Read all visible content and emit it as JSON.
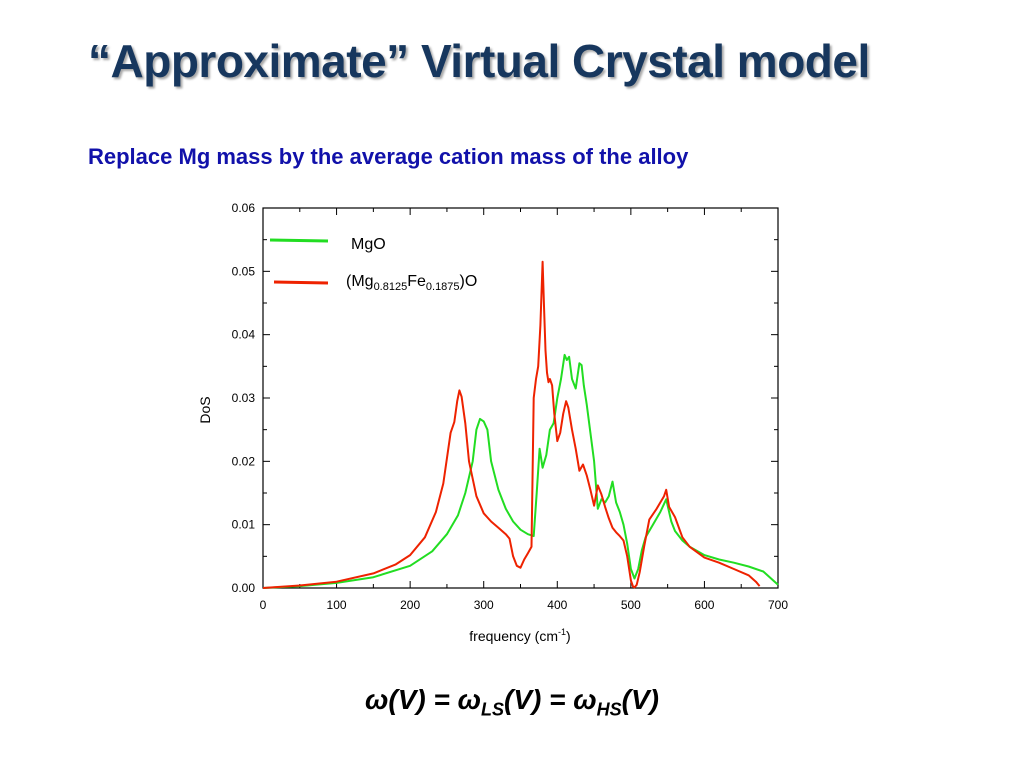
{
  "slide": {
    "title": "“Approximate” Virtual Crystal model",
    "subtitle": "Replace Mg mass by the average cation mass of the alloy"
  },
  "formula": {
    "part1": "ω(V) = ω",
    "sub1": "LS",
    "part2": "(V) = ω",
    "sub2": "HS",
    "part3": "(V)"
  },
  "chart_data": {
    "type": "line",
    "xlabel": "frequency (cm",
    "xlabel_sup": "-1",
    "xlabel_end": ")",
    "ylabel": "DoS",
    "xlim": [
      0,
      700
    ],
    "ylim": [
      0,
      0.06
    ],
    "xticks": [
      "0",
      "100",
      "200",
      "300",
      "400",
      "500",
      "600",
      "700"
    ],
    "yticks": [
      "0.00",
      "0.01",
      "0.02",
      "0.03",
      "0.04",
      "0.05",
      "0.06"
    ],
    "grid": false,
    "legend_position": "top-left",
    "series": [
      {
        "name": "MgO",
        "color": "#22dd22",
        "x": [
          0,
          50,
          100,
          150,
          200,
          230,
          250,
          265,
          275,
          285,
          290,
          295,
          300,
          305,
          310,
          320,
          330,
          340,
          350,
          360,
          368,
          372,
          376,
          380,
          385,
          390,
          395,
          400,
          405,
          410,
          413,
          416,
          420,
          425,
          430,
          433,
          436,
          440,
          445,
          450,
          455,
          460,
          465,
          470,
          475,
          480,
          485,
          490,
          495,
          500,
          505,
          510,
          515,
          520,
          530,
          540,
          548,
          555,
          560,
          570,
          580,
          600,
          620,
          640,
          660,
          680,
          700
        ],
        "y": [
          0,
          0.0003,
          0.0008,
          0.0017,
          0.0035,
          0.0058,
          0.0085,
          0.0115,
          0.015,
          0.02,
          0.025,
          0.0267,
          0.0263,
          0.025,
          0.02,
          0.0155,
          0.0125,
          0.0105,
          0.0092,
          0.0085,
          0.0082,
          0.015,
          0.022,
          0.019,
          0.021,
          0.025,
          0.026,
          0.03,
          0.033,
          0.0368,
          0.036,
          0.0365,
          0.033,
          0.0315,
          0.0355,
          0.0352,
          0.032,
          0.029,
          0.0245,
          0.02,
          0.0125,
          0.014,
          0.0135,
          0.0145,
          0.0168,
          0.0135,
          0.012,
          0.01,
          0.007,
          0.003,
          0.0015,
          0.003,
          0.006,
          0.008,
          0.01,
          0.012,
          0.014,
          0.0105,
          0.009,
          0.0075,
          0.0065,
          0.0052,
          0.0045,
          0.004,
          0.0034,
          0.0026,
          0.0005
        ]
      },
      {
        "name": "(Mg0.8125Fe0.1875)O",
        "color": "#ee2200",
        "x": [
          0,
          50,
          100,
          150,
          180,
          200,
          220,
          235,
          245,
          255,
          260,
          264,
          267,
          270,
          275,
          280,
          290,
          300,
          310,
          320,
          330,
          335,
          340,
          345,
          350,
          355,
          360,
          365,
          368,
          371,
          374,
          377,
          380,
          382,
          384,
          386,
          388,
          390,
          393,
          396,
          400,
          404,
          408,
          412,
          415,
          420,
          425,
          430,
          435,
          440,
          445,
          450,
          455,
          460,
          465,
          470,
          475,
          480,
          485,
          490,
          495,
          500,
          503,
          505,
          508,
          512,
          518,
          525,
          535,
          545,
          548,
          552,
          560,
          570,
          580,
          600,
          620,
          640,
          660,
          670,
          675
        ],
        "y": [
          0,
          0.0004,
          0.001,
          0.0023,
          0.0037,
          0.0052,
          0.008,
          0.012,
          0.0165,
          0.0245,
          0.0262,
          0.0295,
          0.0312,
          0.0302,
          0.026,
          0.02,
          0.0145,
          0.0118,
          0.0105,
          0.0095,
          0.0085,
          0.0078,
          0.005,
          0.0035,
          0.0032,
          0.0045,
          0.0055,
          0.0065,
          0.03,
          0.033,
          0.035,
          0.0415,
          0.0515,
          0.0445,
          0.0375,
          0.034,
          0.0325,
          0.033,
          0.032,
          0.0275,
          0.0232,
          0.0245,
          0.0275,
          0.0295,
          0.0285,
          0.025,
          0.022,
          0.0185,
          0.0195,
          0.0178,
          0.0155,
          0.013,
          0.0162,
          0.0148,
          0.0128,
          0.011,
          0.0095,
          0.0088,
          0.0082,
          0.0075,
          0.005,
          0.0012,
          0.0002,
          0.0001,
          0.0005,
          0.0025,
          0.0065,
          0.0108,
          0.0125,
          0.0145,
          0.0155,
          0.0128,
          0.0112,
          0.008,
          0.0065,
          0.0048,
          0.004,
          0.003,
          0.002,
          0.001,
          0.0003
        ]
      }
    ]
  }
}
